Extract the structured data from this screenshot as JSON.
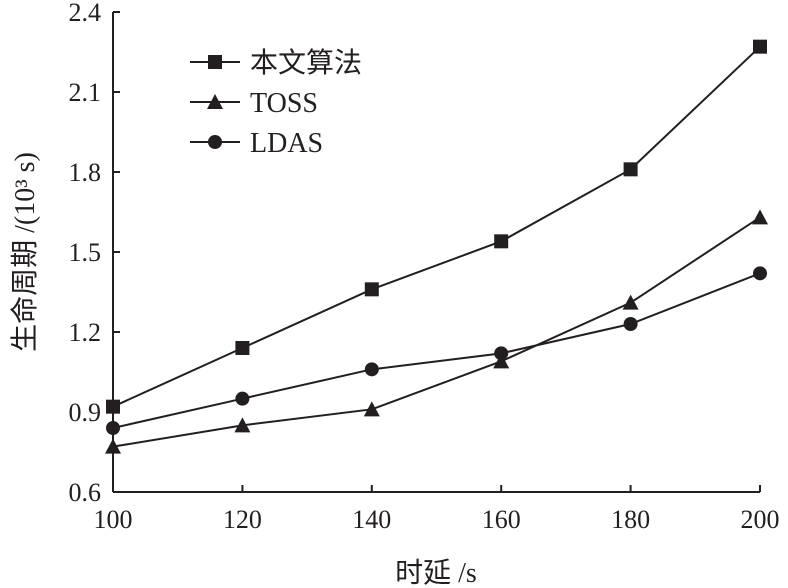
{
  "chart_data": {
    "type": "line",
    "title": "",
    "xlabel": "时延 /s",
    "ylabel": "生命周期 /(10³ s)",
    "x": [
      100,
      120,
      140,
      160,
      180,
      200
    ],
    "xlim": [
      100,
      200
    ],
    "ylim": [
      0.6,
      2.4
    ],
    "xticks": [
      "100",
      "120",
      "140",
      "160",
      "180",
      "200"
    ],
    "yticks": [
      "0.6",
      "0.9",
      "1.2",
      "1.5",
      "1.8",
      "2.1",
      "2.4"
    ],
    "grid": false,
    "legend_position": "top-left",
    "series": [
      {
        "name": "本文算法",
        "marker": "square",
        "values": [
          0.92,
          1.14,
          1.36,
          1.54,
          1.81,
          2.27
        ]
      },
      {
        "name": "TOSS",
        "marker": "triangle",
        "values": [
          0.77,
          0.85,
          0.91,
          1.09,
          1.31,
          1.63
        ]
      },
      {
        "name": "LDAS",
        "marker": "circle",
        "values": [
          0.84,
          0.95,
          1.06,
          1.12,
          1.23,
          1.42
        ]
      }
    ],
    "color": "#231f20"
  }
}
